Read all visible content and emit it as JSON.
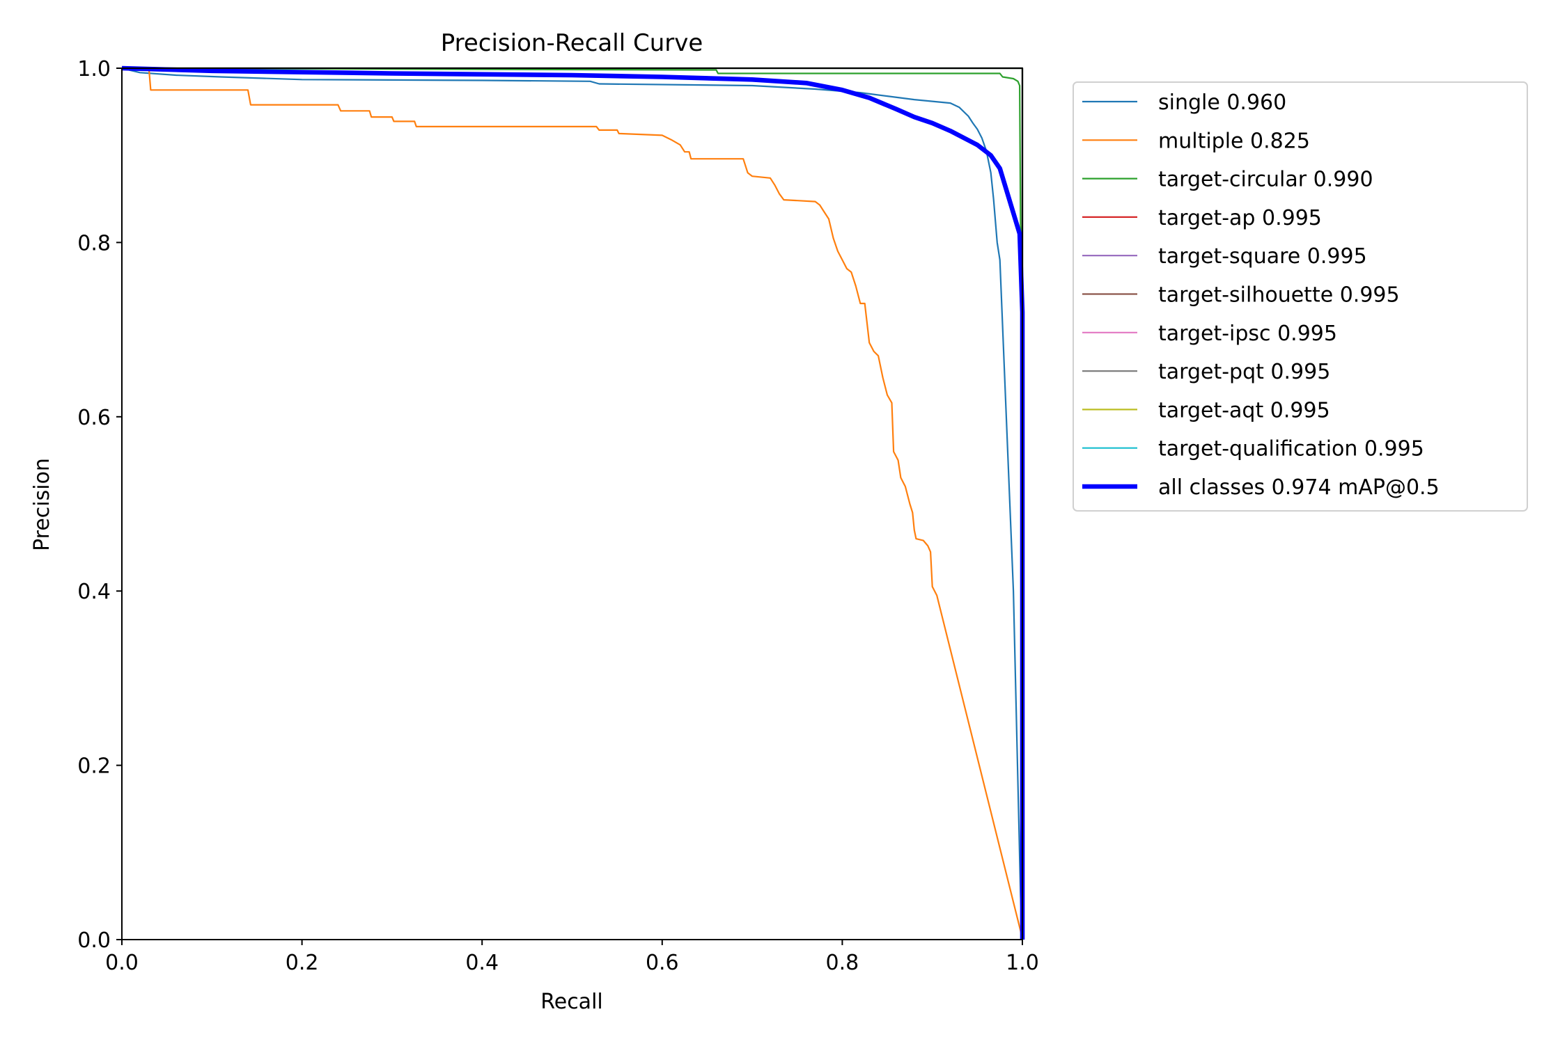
{
  "chart_data": {
    "type": "line",
    "title": "Precision-Recall Curve",
    "xlabel": "Recall",
    "ylabel": "Precision",
    "xlim": [
      0,
      1
    ],
    "ylim": [
      0,
      1
    ],
    "xticks": [
      "0.0",
      "0.2",
      "0.4",
      "0.6",
      "0.8",
      "1.0"
    ],
    "yticks": [
      "0.0",
      "0.2",
      "0.4",
      "0.6",
      "0.8",
      "1.0"
    ],
    "grid": false,
    "legend_position": "outside-right-top",
    "series": [
      {
        "name": "single 0.960",
        "color": "#1f77b4",
        "width": 1,
        "points": [
          [
            0,
            1.0
          ],
          [
            0.02,
            0.995
          ],
          [
            0.06,
            0.992
          ],
          [
            0.11,
            0.99
          ],
          [
            0.2,
            0.987
          ],
          [
            0.4,
            0.986
          ],
          [
            0.52,
            0.985
          ],
          [
            0.53,
            0.982
          ],
          [
            0.7,
            0.98
          ],
          [
            0.77,
            0.976
          ],
          [
            0.82,
            0.972
          ],
          [
            0.85,
            0.968
          ],
          [
            0.88,
            0.964
          ],
          [
            0.92,
            0.96
          ],
          [
            0.93,
            0.955
          ],
          [
            0.94,
            0.945
          ],
          [
            0.945,
            0.937
          ],
          [
            0.95,
            0.93
          ],
          [
            0.955,
            0.92
          ],
          [
            0.96,
            0.905
          ],
          [
            0.965,
            0.88
          ],
          [
            0.968,
            0.85
          ],
          [
            0.972,
            0.8
          ],
          [
            0.975,
            0.78
          ],
          [
            0.99,
            0.4
          ],
          [
            0.998,
            0.05
          ],
          [
            1.0,
            0
          ]
        ]
      },
      {
        "name": "multiple 0.825",
        "color": "#ff7f0e",
        "width": 1,
        "points": [
          [
            0,
            1.0
          ],
          [
            0.03,
            1.0
          ],
          [
            0.032,
            0.975
          ],
          [
            0.14,
            0.975
          ],
          [
            0.143,
            0.958
          ],
          [
            0.24,
            0.958
          ],
          [
            0.243,
            0.951
          ],
          [
            0.275,
            0.951
          ],
          [
            0.277,
            0.944
          ],
          [
            0.3,
            0.944
          ],
          [
            0.302,
            0.939
          ],
          [
            0.325,
            0.939
          ],
          [
            0.327,
            0.933
          ],
          [
            0.527,
            0.933
          ],
          [
            0.53,
            0.929
          ],
          [
            0.55,
            0.929
          ],
          [
            0.552,
            0.925
          ],
          [
            0.6,
            0.923
          ],
          [
            0.61,
            0.918
          ],
          [
            0.62,
            0.912
          ],
          [
            0.625,
            0.904
          ],
          [
            0.63,
            0.904
          ],
          [
            0.632,
            0.896
          ],
          [
            0.69,
            0.896
          ],
          [
            0.695,
            0.88
          ],
          [
            0.7,
            0.876
          ],
          [
            0.72,
            0.874
          ],
          [
            0.725,
            0.866
          ],
          [
            0.73,
            0.856
          ],
          [
            0.735,
            0.849
          ],
          [
            0.77,
            0.847
          ],
          [
            0.775,
            0.843
          ],
          [
            0.78,
            0.835
          ],
          [
            0.785,
            0.827
          ],
          [
            0.79,
            0.805
          ],
          [
            0.795,
            0.79
          ],
          [
            0.8,
            0.78
          ],
          [
            0.805,
            0.77
          ],
          [
            0.81,
            0.766
          ],
          [
            0.815,
            0.75
          ],
          [
            0.82,
            0.73
          ],
          [
            0.825,
            0.73
          ],
          [
            0.83,
            0.685
          ],
          [
            0.835,
            0.675
          ],
          [
            0.84,
            0.67
          ],
          [
            0.845,
            0.645
          ],
          [
            0.85,
            0.625
          ],
          [
            0.855,
            0.616
          ],
          [
            0.857,
            0.56
          ],
          [
            0.862,
            0.55
          ],
          [
            0.865,
            0.53
          ],
          [
            0.87,
            0.52
          ],
          [
            0.875,
            0.5
          ],
          [
            0.878,
            0.49
          ],
          [
            0.88,
            0.47
          ],
          [
            0.882,
            0.46
          ],
          [
            0.89,
            0.458
          ],
          [
            0.895,
            0.452
          ],
          [
            0.898,
            0.445
          ],
          [
            0.9,
            0.405
          ],
          [
            0.905,
            0.395
          ],
          [
            0.998,
            0.01
          ],
          [
            1.0,
            0
          ]
        ]
      },
      {
        "name": "target-circular 0.990",
        "color": "#2ca02c",
        "width": 1,
        "points": [
          [
            0,
            1.0
          ],
          [
            0.66,
            0.998
          ],
          [
            0.662,
            0.994
          ],
          [
            0.975,
            0.994
          ],
          [
            0.978,
            0.99
          ],
          [
            0.99,
            0.988
          ],
          [
            0.995,
            0.985
          ],
          [
            0.997,
            0.98
          ],
          [
            0.998,
            0.82
          ],
          [
            1.0,
            0.8
          ]
        ]
      },
      {
        "name": "target-ap 0.995",
        "color": "#d62728",
        "width": 1,
        "points": [
          [
            0,
            1
          ],
          [
            1,
            1
          ],
          [
            1,
            0
          ]
        ]
      },
      {
        "name": "target-square 0.995",
        "color": "#9467bd",
        "width": 1,
        "points": [
          [
            0,
            1
          ],
          [
            1,
            1
          ],
          [
            1,
            0
          ]
        ]
      },
      {
        "name": "target-silhouette 0.995",
        "color": "#8c564b",
        "width": 1,
        "points": [
          [
            0,
            1
          ],
          [
            1,
            1
          ],
          [
            1,
            0
          ]
        ]
      },
      {
        "name": "target-ipsc 0.995",
        "color": "#e377c2",
        "width": 1,
        "points": [
          [
            0,
            1
          ],
          [
            1,
            1
          ],
          [
            1,
            0
          ]
        ]
      },
      {
        "name": "target-pqt 0.995",
        "color": "#7f7f7f",
        "width": 1,
        "points": [
          [
            0,
            1
          ],
          [
            1,
            1
          ],
          [
            1,
            0
          ]
        ]
      },
      {
        "name": "target-aqt 0.995",
        "color": "#bcbd22",
        "width": 1,
        "points": [
          [
            0,
            1
          ],
          [
            1,
            1
          ],
          [
            1,
            0
          ]
        ]
      },
      {
        "name": "target-qualification 0.995",
        "color": "#17becf",
        "width": 1,
        "points": [
          [
            0,
            1
          ],
          [
            1,
            1
          ],
          [
            1,
            0
          ]
        ]
      },
      {
        "name": "all classes 0.974 mAP@0.5",
        "color": "#0000ff",
        "width": 3,
        "points": [
          [
            0,
            1.0
          ],
          [
            0.1,
            0.997
          ],
          [
            0.3,
            0.994
          ],
          [
            0.5,
            0.992
          ],
          [
            0.6,
            0.99
          ],
          [
            0.7,
            0.987
          ],
          [
            0.76,
            0.983
          ],
          [
            0.8,
            0.975
          ],
          [
            0.83,
            0.966
          ],
          [
            0.86,
            0.953
          ],
          [
            0.88,
            0.944
          ],
          [
            0.9,
            0.937
          ],
          [
            0.92,
            0.928
          ],
          [
            0.95,
            0.912
          ],
          [
            0.965,
            0.9
          ],
          [
            0.975,
            0.885
          ],
          [
            0.997,
            0.81
          ],
          [
            1.0,
            0.72
          ],
          [
            1.0,
            0
          ]
        ]
      }
    ]
  }
}
